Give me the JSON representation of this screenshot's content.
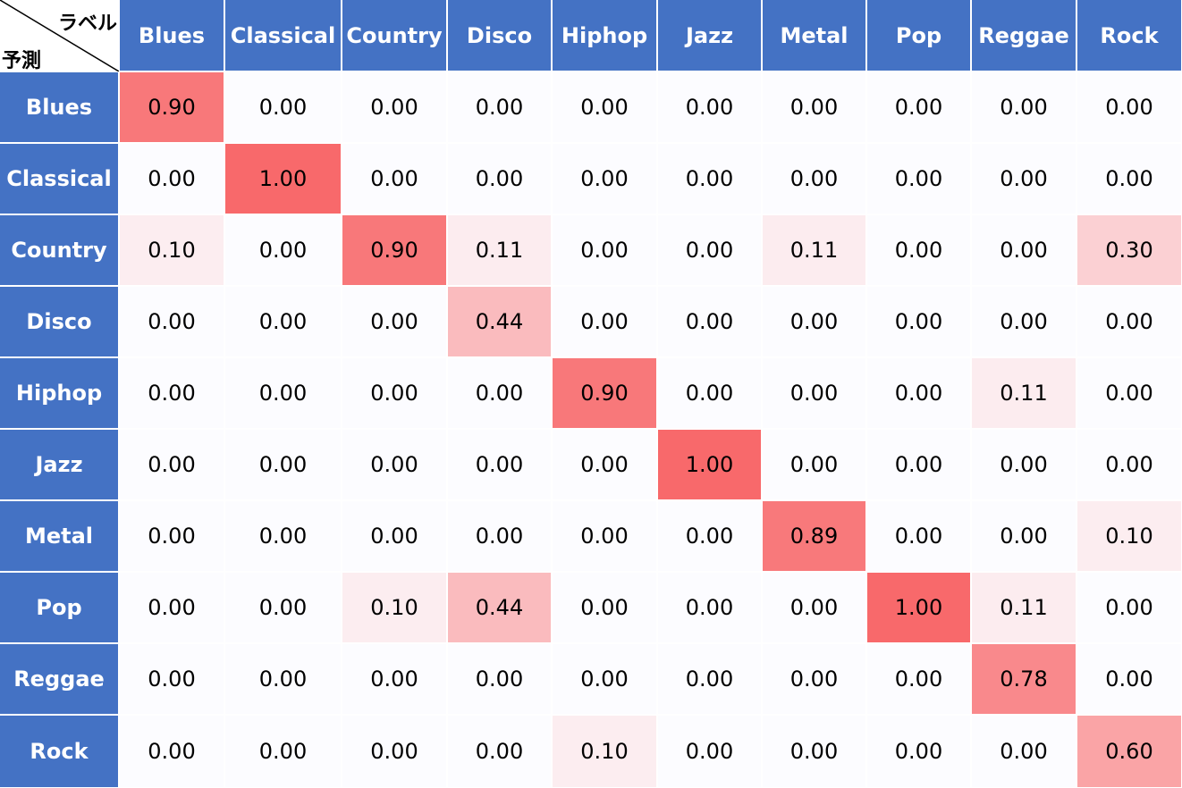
{
  "chart_data": {
    "type": "heatmap",
    "column_axis_label": "ラベル",
    "row_axis_label": "予測",
    "columns": [
      "Blues",
      "Classical",
      "Country",
      "Disco",
      "Hiphop",
      "Jazz",
      "Metal",
      "Pop",
      "Reggae",
      "Rock"
    ],
    "rows": [
      "Blues",
      "Classical",
      "Country",
      "Disco",
      "Hiphop",
      "Jazz",
      "Metal",
      "Pop",
      "Reggae",
      "Rock"
    ],
    "values": [
      [
        0.9,
        0.0,
        0.0,
        0.0,
        0.0,
        0.0,
        0.0,
        0.0,
        0.0,
        0.0
      ],
      [
        0.0,
        1.0,
        0.0,
        0.0,
        0.0,
        0.0,
        0.0,
        0.0,
        0.0,
        0.0
      ],
      [
        0.1,
        0.0,
        0.9,
        0.11,
        0.0,
        0.0,
        0.11,
        0.0,
        0.0,
        0.3
      ],
      [
        0.0,
        0.0,
        0.0,
        0.44,
        0.0,
        0.0,
        0.0,
        0.0,
        0.0,
        0.0
      ],
      [
        0.0,
        0.0,
        0.0,
        0.0,
        0.9,
        0.0,
        0.0,
        0.0,
        0.11,
        0.0
      ],
      [
        0.0,
        0.0,
        0.0,
        0.0,
        0.0,
        1.0,
        0.0,
        0.0,
        0.0,
        0.0
      ],
      [
        0.0,
        0.0,
        0.0,
        0.0,
        0.0,
        0.0,
        0.89,
        0.0,
        0.0,
        0.1
      ],
      [
        0.0,
        0.0,
        0.1,
        0.44,
        0.0,
        0.0,
        0.0,
        1.0,
        0.11,
        0.0
      ],
      [
        0.0,
        0.0,
        0.0,
        0.0,
        0.0,
        0.0,
        0.0,
        0.0,
        0.78,
        0.0
      ],
      [
        0.0,
        0.0,
        0.0,
        0.0,
        0.1,
        0.0,
        0.0,
        0.0,
        0.0,
        0.6
      ]
    ],
    "colors": {
      "header": "#4472c4",
      "header_text": "#ffffff",
      "low": "#fcfcff",
      "high": "#f8696b"
    }
  }
}
